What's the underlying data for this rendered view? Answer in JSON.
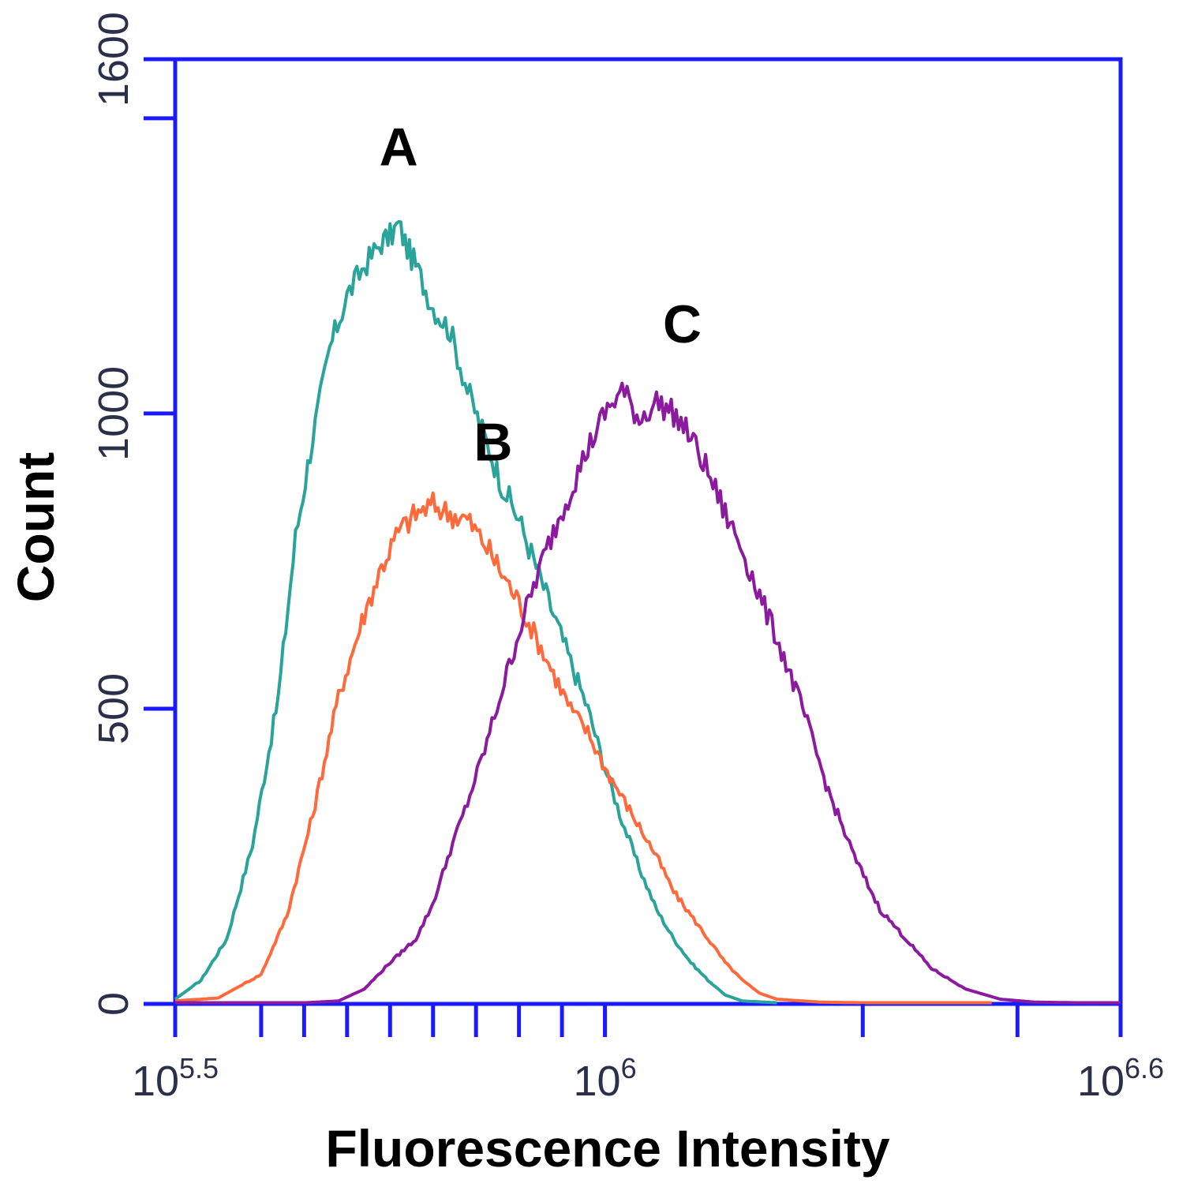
{
  "chart_data": {
    "type": "line",
    "title": "",
    "xlabel": "Fluorescence Intensity",
    "ylabel": "Count",
    "x_scale": "log10",
    "xlim_exponent": [
      5.5,
      6.6
    ],
    "ylim": [
      0,
      1600
    ],
    "grid": false,
    "x_tick_labels": [
      {
        "base": "10",
        "exp": "5.5",
        "exponent_value": 5.5
      },
      {
        "base": "10",
        "exp": "6",
        "exponent_value": 6.0
      },
      {
        "base": "10",
        "exp": "6.6",
        "exponent_value": 6.6
      }
    ],
    "x_minor_tick_exponents": [
      5.5,
      5.6,
      5.65,
      5.7,
      5.75,
      5.8,
      5.85,
      5.9,
      5.95,
      6.0,
      6.3,
      6.48,
      6.6
    ],
    "y_ticks": [
      0,
      500,
      1000,
      1600
    ],
    "y_minor_ticks": [
      1500
    ],
    "axis_color": "#1a1aff",
    "series": [
      {
        "name": "A",
        "color": "#2aa39a",
        "x_exponent": [
          5.5,
          5.53,
          5.56,
          5.59,
          5.62,
          5.64,
          5.66,
          5.68,
          5.7,
          5.72,
          5.74,
          5.75,
          5.76,
          5.77,
          5.78,
          5.8,
          5.82,
          5.84,
          5.86,
          5.88,
          5.9,
          5.92,
          5.94,
          5.96,
          5.98,
          6.0,
          6.02,
          6.04,
          6.06,
          6.08,
          6.1,
          6.12,
          6.14,
          6.16,
          6.2
        ],
        "y": [
          8,
          40,
          110,
          270,
          520,
          790,
          960,
          1110,
          1200,
          1250,
          1290,
          1300,
          1320,
          1280,
          1250,
          1180,
          1140,
          1040,
          960,
          880,
          820,
          740,
          660,
          580,
          500,
          400,
          310,
          230,
          160,
          110,
          70,
          40,
          15,
          5,
          2
        ]
      },
      {
        "name": "B",
        "color": "#ff6a3d",
        "x_exponent": [
          5.5,
          5.55,
          5.6,
          5.63,
          5.66,
          5.69,
          5.72,
          5.74,
          5.76,
          5.78,
          5.8,
          5.82,
          5.84,
          5.86,
          5.88,
          5.9,
          5.92,
          5.94,
          5.96,
          5.98,
          6.0,
          6.02,
          6.04,
          6.06,
          6.08,
          6.1,
          6.12,
          6.14,
          6.16,
          6.18,
          6.2,
          6.25,
          6.3,
          6.35,
          6.45
        ],
        "y": [
          5,
          10,
          50,
          150,
          320,
          520,
          660,
          740,
          800,
          830,
          845,
          830,
          820,
          780,
          730,
          680,
          620,
          560,
          500,
          460,
          400,
          350,
          300,
          250,
          190,
          150,
          110,
          70,
          40,
          18,
          8,
          3,
          2,
          2,
          2
        ]
      },
      {
        "name": "C",
        "color": "#8b1a9e",
        "x_exponent": [
          5.5,
          5.65,
          5.69,
          5.72,
          5.75,
          5.78,
          5.8,
          5.82,
          5.84,
          5.86,
          5.88,
          5.9,
          5.92,
          5.94,
          5.96,
          5.98,
          6.0,
          6.02,
          6.04,
          6.06,
          6.08,
          6.1,
          6.12,
          6.14,
          6.16,
          6.18,
          6.2,
          6.23,
          6.26,
          6.29,
          6.32,
          6.35,
          6.38,
          6.42,
          6.46,
          6.5,
          6.55,
          6.6
        ],
        "y": [
          2,
          2,
          5,
          25,
          70,
          110,
          170,
          260,
          340,
          430,
          530,
          630,
          720,
          800,
          870,
          940,
          1000,
          1040,
          990,
          1020,
          1000,
          960,
          900,
          830,
          770,
          690,
          620,
          500,
          360,
          250,
          160,
          110,
          60,
          25,
          8,
          3,
          2,
          2
        ]
      }
    ],
    "annotations": [
      {
        "text": "A",
        "series": "A",
        "x_exponent": 5.76,
        "y": 1420
      },
      {
        "text": "B",
        "series": "B",
        "x_exponent": 5.87,
        "y": 920
      },
      {
        "text": "C",
        "series": "C",
        "x_exponent": 6.09,
        "y": 1120
      }
    ]
  }
}
